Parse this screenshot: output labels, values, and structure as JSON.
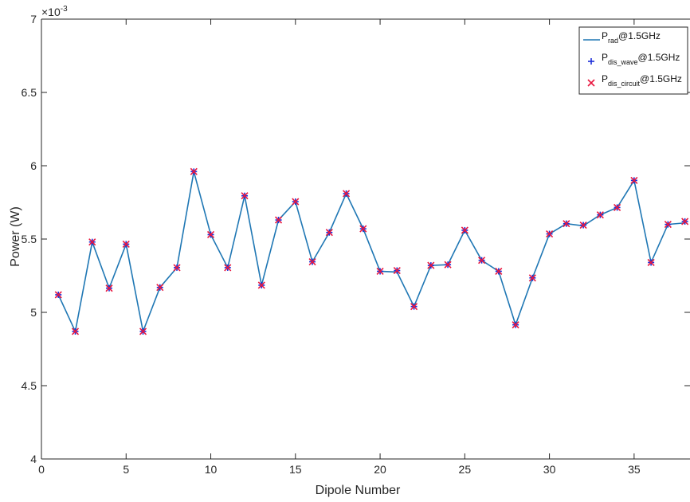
{
  "chart_data": {
    "type": "line",
    "xlabel": "Dipole Number",
    "ylabel": "Power (W)",
    "y_scale_label": "×10",
    "y_scale_exponent": "-3",
    "xlim": [
      0,
      38.3
    ],
    "ylim": [
      4,
      7
    ],
    "xticks": [
      0,
      5,
      10,
      15,
      20,
      25,
      30,
      35
    ],
    "yticks": [
      4,
      4.5,
      5,
      5.5,
      6,
      6.5,
      7
    ],
    "grid": false,
    "legend_position": "top-right",
    "x": [
      1,
      2,
      3,
      4,
      5,
      6,
      7,
      8,
      9,
      10,
      11,
      12,
      13,
      14,
      15,
      16,
      17,
      18,
      19,
      20,
      21,
      22,
      23,
      24,
      25,
      26,
      27,
      28,
      29,
      30,
      31,
      32,
      33,
      34,
      35,
      36,
      37,
      38
    ],
    "series": [
      {
        "name_main": "P",
        "name_sub": "rad",
        "name_suffix": "@1.5GHz",
        "marker": "line",
        "color": "#1f77b4",
        "values": [
          5.12,
          4.87,
          5.48,
          5.165,
          5.465,
          4.87,
          5.17,
          5.305,
          5.96,
          5.53,
          5.305,
          5.795,
          5.185,
          5.63,
          5.755,
          5.345,
          5.545,
          5.81,
          5.57,
          5.28,
          5.275,
          5.04,
          5.32,
          5.325,
          5.56,
          5.355,
          5.28,
          4.915,
          5.235,
          5.535,
          5.605,
          5.59,
          5.665,
          5.715,
          5.9,
          5.34,
          5.6,
          5.61
        ]
      },
      {
        "name_main": "P",
        "name_sub": "dis_wave",
        "name_suffix": "@1.5GHz",
        "marker": "plus",
        "color": "#1c2ed8",
        "values": [
          5.12,
          4.87,
          5.48,
          5.165,
          5.465,
          4.87,
          5.17,
          5.305,
          5.96,
          5.53,
          5.305,
          5.795,
          5.185,
          5.63,
          5.755,
          5.345,
          5.545,
          5.81,
          5.57,
          5.28,
          5.285,
          5.04,
          5.32,
          5.325,
          5.56,
          5.355,
          5.28,
          4.915,
          5.235,
          5.535,
          5.605,
          5.595,
          5.665,
          5.715,
          5.9,
          5.34,
          5.6,
          5.62
        ]
      },
      {
        "name_main": "P",
        "name_sub": "dis_circuit",
        "name_suffix": "@1.5GHz",
        "marker": "x",
        "color": "#e8173f",
        "values": [
          5.12,
          4.87,
          5.48,
          5.165,
          5.465,
          4.87,
          5.17,
          5.305,
          5.96,
          5.53,
          5.305,
          5.795,
          5.185,
          5.63,
          5.755,
          5.345,
          5.545,
          5.81,
          5.57,
          5.28,
          5.285,
          5.04,
          5.32,
          5.325,
          5.56,
          5.355,
          5.28,
          4.915,
          5.235,
          5.535,
          5.605,
          5.595,
          5.665,
          5.715,
          5.9,
          5.34,
          5.6,
          5.62
        ]
      }
    ]
  }
}
